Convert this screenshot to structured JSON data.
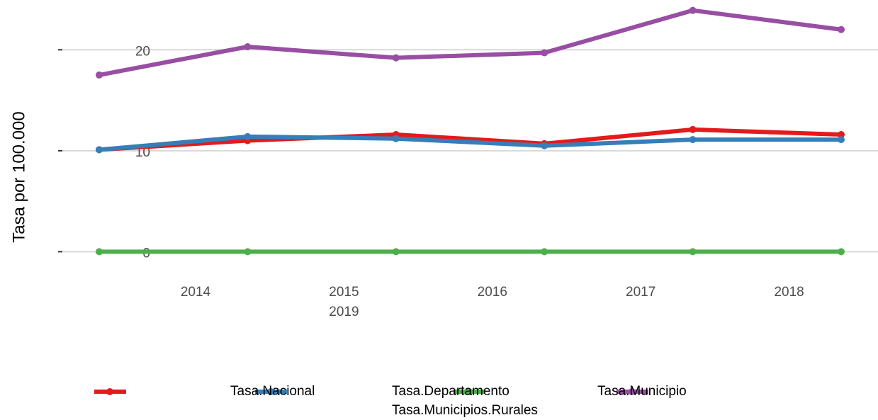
{
  "chart_data": {
    "type": "line",
    "y_label": "Tasa por 100.000",
    "categories": [
      "2014",
      "2015",
      "2016",
      "2017",
      "2018",
      "2019"
    ],
    "series": [
      {
        "name": "Tasa.Nacional",
        "color": "#e41a1c",
        "values": [
          10.1,
          11.0,
          11.6,
          10.7,
          12.1,
          11.6
        ]
      },
      {
        "name": "Tasa.Departamento",
        "color": "#377eb8",
        "values": [
          10.1,
          11.4,
          11.2,
          10.5,
          11.1,
          11.1
        ]
      },
      {
        "name": "Tasa.Municipio",
        "color": "#4daf4a",
        "values": [
          0,
          0,
          0,
          0,
          0,
          0
        ]
      },
      {
        "name": "Tasa.Municipios.Rurales",
        "color": "#984ea3",
        "values": [
          17.5,
          20.3,
          19.2,
          19.7,
          23.9,
          22.0
        ]
      }
    ],
    "ylim": [
      -2.5,
      25
    ],
    "yticks": [
      0,
      10,
      20
    ],
    "grid": true,
    "legend": "bottom"
  }
}
